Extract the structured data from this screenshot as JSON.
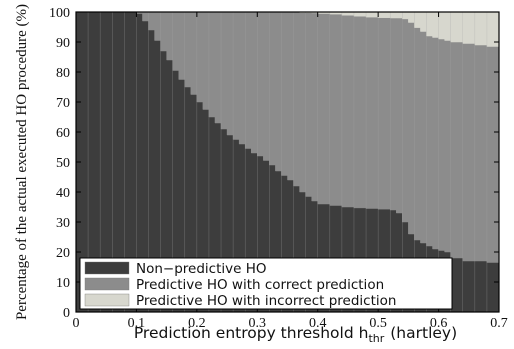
{
  "chart_data": {
    "type": "area",
    "stacking": "percent",
    "xlabel": "Prediction entropy threshold h",
    "xlabel_subscript": "thr",
    "xlabel_suffix": "(hartley)",
    "ylabel": "Percentage of the actual executed HO procedure (%)",
    "xlim": [
      0,
      0.7
    ],
    "ylim": [
      0,
      100
    ],
    "xticks": [
      "0",
      "0.1",
      "0.2",
      "0.3",
      "0.4",
      "0.5",
      "0.6",
      "0.7"
    ],
    "yticks": [
      "0",
      "10",
      "20",
      "30",
      "40",
      "50",
      "60",
      "70",
      "80",
      "90",
      "100"
    ],
    "grid": "vertical",
    "legend_position": "bottom-left",
    "x": [
      0,
      0.05,
      0.1,
      0.11,
      0.12,
      0.13,
      0.14,
      0.15,
      0.16,
      0.17,
      0.18,
      0.19,
      0.2,
      0.21,
      0.22,
      0.23,
      0.24,
      0.25,
      0.26,
      0.27,
      0.28,
      0.29,
      0.3,
      0.31,
      0.32,
      0.33,
      0.34,
      0.35,
      0.36,
      0.37,
      0.38,
      0.39,
      0.4,
      0.42,
      0.44,
      0.46,
      0.48,
      0.5,
      0.52,
      0.53,
      0.54,
      0.55,
      0.56,
      0.57,
      0.58,
      0.59,
      0.6,
      0.61,
      0.62,
      0.64,
      0.66,
      0.68,
      0.7
    ],
    "series": [
      {
        "name": "Non−predictive HO",
        "color": "#3d3d3d",
        "values": [
          100,
          100,
          99.5,
          97,
          94,
          90.5,
          87,
          84,
          80.5,
          77.5,
          75,
          72.5,
          70,
          67.5,
          65,
          63,
          61,
          59,
          57.5,
          56,
          54.5,
          53,
          52,
          50.5,
          49,
          47,
          45.5,
          44,
          42,
          40,
          38.5,
          37,
          36,
          35.5,
          35,
          34.7,
          34.5,
          34.3,
          34,
          33,
          30,
          26,
          24,
          23,
          22,
          21,
          20.5,
          20,
          18,
          17,
          17,
          16.5,
          16
        ]
      },
      {
        "name": "Predictive HO with correct prediction",
        "color": "#8c8c8c",
        "values": [
          0,
          0,
          0.5,
          3,
          6,
          9.5,
          13,
          16,
          19.5,
          22.5,
          25,
          27.5,
          30,
          32.5,
          35,
          37,
          39,
          41,
          42.5,
          44,
          45.5,
          47,
          48,
          49.5,
          51,
          53,
          54.5,
          56,
          58,
          59.8,
          61.3,
          62.7,
          63.5,
          63.8,
          63.9,
          63.9,
          63.8,
          63.8,
          64,
          65,
          67.7,
          70.5,
          70.8,
          70.5,
          70,
          70.5,
          70.5,
          70.5,
          72,
          72.5,
          72,
          72,
          72.3
        ]
      },
      {
        "name": "Predictive HO with incorrect prediction",
        "color": "#d7d7ce",
        "values": [
          0,
          0,
          0,
          0,
          0,
          0,
          0,
          0,
          0,
          0,
          0,
          0,
          0,
          0,
          0,
          0,
          0,
          0,
          0,
          0,
          0,
          0,
          0,
          0,
          0,
          0,
          0,
          0,
          0,
          0.2,
          0.2,
          0.3,
          0.5,
          0.7,
          1.1,
          1.4,
          1.7,
          1.9,
          2,
          2,
          2.3,
          3.5,
          5.2,
          6.5,
          8,
          8.5,
          9,
          9.5,
          10,
          10.5,
          11,
          11.5,
          11.7
        ]
      }
    ]
  }
}
